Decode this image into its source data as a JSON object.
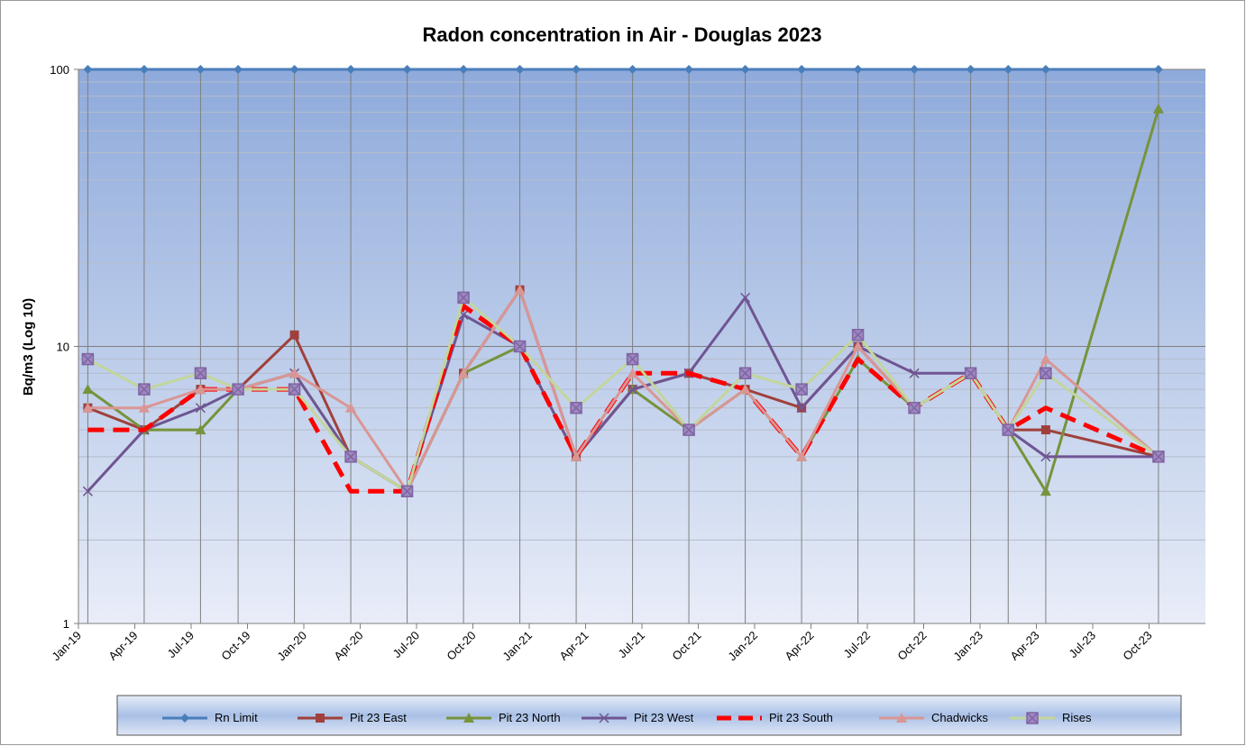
{
  "chart_data": {
    "type": "line",
    "title": "Radon concentration in Air - Douglas 2023",
    "y_label": "Bq/m3 (Log 10)",
    "log_y": true,
    "grid": true,
    "y_minor_grid": true,
    "legend": "bottom",
    "x": [
      "2019-01",
      "2019-04",
      "2019-07",
      "2019-09",
      "2019-12",
      "2020-03",
      "2020-06",
      "2020-09",
      "2020-12",
      "2021-03",
      "2021-06",
      "2021-09",
      "2021-12",
      "2022-03",
      "2022-06",
      "2022-09",
      "2022-12",
      "2023-02",
      "2023-04",
      "2023-10"
    ],
    "xlim": [
      "2019-01",
      "2024-01"
    ],
    "xticks": [
      {
        "value": "2019-01",
        "label": "Jan-19"
      },
      {
        "value": "2019-04",
        "label": "Apr-19"
      },
      {
        "value": "2019-07",
        "label": "Jul-19"
      },
      {
        "value": "2019-10",
        "label": "Oct-19"
      },
      {
        "value": "2020-01",
        "label": "Jan-20"
      },
      {
        "value": "2020-04",
        "label": "Apr-20"
      },
      {
        "value": "2020-07",
        "label": "Jul-20"
      },
      {
        "value": "2020-10",
        "label": "Oct-20"
      },
      {
        "value": "2021-01",
        "label": "Jan-21"
      },
      {
        "value": "2021-04",
        "label": "Apr-21"
      },
      {
        "value": "2021-07",
        "label": "Jul-21"
      },
      {
        "value": "2021-10",
        "label": "Oct-21"
      },
      {
        "value": "2022-01",
        "label": "Jan-22"
      },
      {
        "value": "2022-04",
        "label": "Apr-22"
      },
      {
        "value": "2022-07",
        "label": "Jul-22"
      },
      {
        "value": "2022-10",
        "label": "Oct-22"
      },
      {
        "value": "2023-01",
        "label": "Jan-23"
      },
      {
        "value": "2023-04",
        "label": "Apr-23"
      },
      {
        "value": "2023-07",
        "label": "Jul-23"
      },
      {
        "value": "2023-10",
        "label": "Oct-23"
      }
    ],
    "ylim": [
      1,
      100
    ],
    "yticks": [
      1,
      10,
      100
    ],
    "series": [
      {
        "name": "Rn Limit",
        "color": "#4a7ebb",
        "marker": "diamond",
        "values": [
          100,
          100,
          100,
          100,
          100,
          100,
          100,
          100,
          100,
          100,
          100,
          100,
          100,
          100,
          100,
          100,
          100,
          100,
          100,
          100
        ]
      },
      {
        "name": "Pit 23 East",
        "color": "#a0403c",
        "marker": "square",
        "values": [
          6,
          5,
          7,
          7,
          11,
          4,
          3,
          8,
          16,
          4,
          7,
          8,
          7,
          6,
          10,
          6,
          8,
          5,
          5,
          4
        ]
      },
      {
        "name": "Pit 23 North",
        "color": "#77933c",
        "marker": "triangle",
        "values": [
          7,
          5,
          5,
          7,
          8,
          4,
          3,
          8,
          10,
          4,
          7,
          5,
          7,
          4,
          9,
          6,
          8,
          5,
          3,
          72
        ]
      },
      {
        "name": "Pit 23 West",
        "color": "#6f5593",
        "marker": "x",
        "values": [
          3,
          5,
          6,
          7,
          8,
          4,
          3,
          13,
          10,
          4,
          7,
          8,
          15,
          6,
          10,
          8,
          8,
          5,
          4,
          4
        ]
      },
      {
        "name": "Pit 23 South",
        "color": "#ff0000",
        "marker": "none",
        "dashed": true,
        "values": [
          5,
          5,
          7,
          7,
          7,
          3,
          3,
          14,
          10,
          4,
          8,
          8,
          7,
          4,
          9,
          6,
          8,
          5,
          6,
          4
        ]
      },
      {
        "name": "Chadwicks",
        "color": "#d99694",
        "marker": "triangle",
        "values": [
          6,
          6,
          7,
          7,
          8,
          6,
          3,
          8,
          16,
          4,
          8,
          5,
          7,
          4,
          10,
          6,
          8,
          5,
          9,
          4
        ]
      },
      {
        "name": "Rises",
        "color": "#c3d69b",
        "marker": "squarex",
        "marker_color": "#8064a2",
        "values": [
          9,
          7,
          8,
          7,
          7,
          4,
          3,
          15,
          10,
          6,
          9,
          5,
          8,
          7,
          11,
          6,
          8,
          5,
          8,
          4
        ]
      }
    ]
  }
}
